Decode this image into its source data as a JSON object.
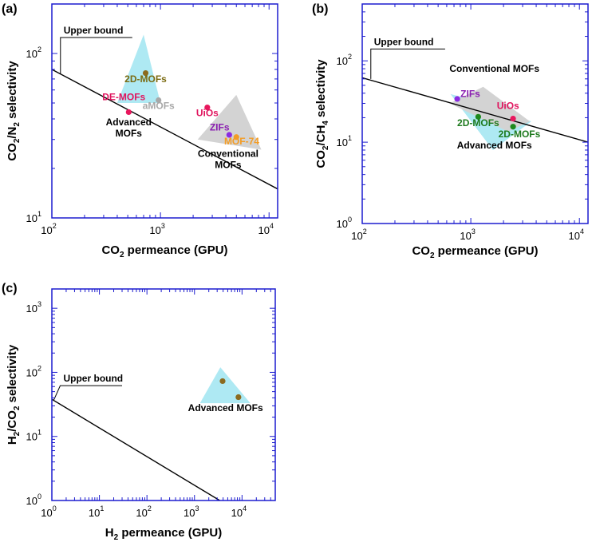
{
  "chart_data": [
    {
      "panel": "(a)",
      "type": "scatter",
      "xscale": "log",
      "yscale": "log",
      "xlim": [
        100,
        12000
      ],
      "ylim": [
        10,
        200
      ],
      "xlabel": "CO2 permeance (GPU)",
      "ylabel": "CO2/N2 selectivity",
      "xlabel_parts": [
        "CO",
        "2",
        " permeance (GPU)"
      ],
      "ylabel_parts": [
        "CO",
        "2",
        "/N",
        "2",
        " selectivity"
      ],
      "xticks": [
        {
          "value": 100,
          "base": "10",
          "exp": "2"
        },
        {
          "value": 1000,
          "base": "10",
          "exp": "3"
        },
        {
          "value": 10000,
          "base": "10",
          "exp": "4"
        }
      ],
      "yticks": [
        {
          "value": 10,
          "base": "10",
          "exp": "1"
        },
        {
          "value": 100,
          "base": "10",
          "exp": "2"
        }
      ],
      "upper_bound": {
        "label": "Upper bound",
        "p1": [
          100,
          80
        ],
        "p2": [
          12000,
          15
        ]
      },
      "upper_bound_leader": {
        "anchor": [
          120,
          75
        ],
        "label_at": [
          120,
          125
        ],
        "end": [
          550,
          125
        ]
      },
      "regions": [
        {
          "name": "advanced",
          "color": "#aee9f3",
          "label_lines": [
            "Advanced",
            "MOFs"
          ],
          "label_at": [
            510,
            36.5
          ],
          "polygon": [
            [
              700,
              130
            ],
            [
              1000,
              50
            ],
            [
              400,
              50
            ]
          ]
        },
        {
          "name": "conventional",
          "color": "#d3d3d3",
          "label_lines": [
            "Conventional",
            "MOFs"
          ],
          "label_at": [
            4200,
            23.5
          ],
          "polygon": [
            [
              5000,
              56
            ],
            [
              8500,
              26
            ],
            [
              2200,
              30
            ]
          ]
        }
      ],
      "points": [
        {
          "label": "2D-MOFs",
          "x": 730,
          "y": 76,
          "color": "#8b6a1e",
          "text_color": "#7a6a10",
          "label_at": [
            730,
            67
          ]
        },
        {
          "label": "aMOFs",
          "x": 960,
          "y": 52,
          "color": "#a8a8a8",
          "text_color": "#a8a8a8",
          "label_at": [
            960,
            46
          ]
        },
        {
          "label": "DE-MOFs",
          "x": 510,
          "y": 44,
          "color": "#e8175d",
          "text_color": "#e0135d",
          "label_at": [
            460,
            52
          ]
        },
        {
          "label": "UiOs",
          "x": 2700,
          "y": 47,
          "color": "#e8175d",
          "text_color": "#e0135d",
          "label_at": [
            2700,
            41.5
          ]
        },
        {
          "label": "ZIFs",
          "x": 4300,
          "y": 32,
          "color": "#8a2be2",
          "text_color": "#8a1fb0",
          "label_at": [
            3500,
            34
          ]
        },
        {
          "label": "MOF-74",
          "x": 5000,
          "y": 31,
          "color": "#f39c24",
          "text_color": "#f39c24",
          "label_at": [
            5600,
            28
          ]
        }
      ]
    },
    {
      "panel": "(b)",
      "type": "scatter",
      "xscale": "log",
      "yscale": "log",
      "xlim": [
        100,
        12000
      ],
      "ylim": [
        1,
        500
      ],
      "xlabel": "CO2 permeance (GPU)",
      "ylabel": "CO2/CH4 selectivity",
      "xlabel_parts": [
        "CO",
        "2",
        " permeance (GPU)"
      ],
      "ylabel_parts": [
        "CO",
        "2",
        "/CH",
        "4",
        " selectivity"
      ],
      "xticks": [
        {
          "value": 100,
          "base": "10",
          "exp": "2"
        },
        {
          "value": 1000,
          "base": "10",
          "exp": "3"
        },
        {
          "value": 10000,
          "base": "10",
          "exp": "4"
        }
      ],
      "yticks": [
        {
          "value": 1,
          "base": "10",
          "exp": "0"
        },
        {
          "value": 10,
          "base": "10",
          "exp": "1"
        },
        {
          "value": 100,
          "base": "10",
          "exp": "2"
        }
      ],
      "upper_bound": {
        "label": "Upper bound",
        "p1": [
          100,
          62
        ],
        "p2": [
          12000,
          10
        ]
      },
      "upper_bound_leader": {
        "anchor": [
          120,
          60
        ],
        "label_at": [
          120,
          140
        ],
        "end": [
          580,
          140
        ]
      },
      "regions": [
        {
          "name": "advanced",
          "color": "#aee9f3",
          "label_lines": [
            "Advanced MOFs"
          ],
          "label_at": [
            1650,
            8.4
          ],
          "polygon": [
            [
              650,
              39
            ],
            [
              1400,
              30
            ],
            [
              3600,
              18
            ],
            [
              1600,
              8
            ]
          ]
        },
        {
          "name": "conventional",
          "color": "#d3d3d3",
          "label_lines": [
            "Conventional MOFs"
          ],
          "label_at": [
            1650,
            73
          ],
          "polygon": [
            [
              1300,
              48
            ],
            [
              3500,
              18
            ],
            [
              2200,
              13.5
            ],
            [
              640,
              30
            ]
          ]
        }
      ],
      "points": [
        {
          "label": "ZIFs",
          "x": 750,
          "y": 34,
          "color": "#8a2be2",
          "text_color": "#8a1fb0",
          "label_at": [
            990,
            36
          ]
        },
        {
          "label": "UiOs",
          "x": 2450,
          "y": 19.5,
          "color": "#e8175d",
          "text_color": "#e0135d",
          "label_at": [
            2200,
            25.5
          ]
        },
        {
          "label": "2D-MOFs",
          "x": 1170,
          "y": 20.5,
          "color": "#1e8a1e",
          "text_color": "#1e7a1e",
          "label_at": [
            1170,
            15.8
          ]
        },
        {
          "label": "2D-MOFs",
          "x": 2450,
          "y": 15.5,
          "color": "#1e8a1e",
          "text_color": "#1e7a1e",
          "label_at": [
            2800,
            11.5
          ]
        }
      ]
    },
    {
      "panel": "(c)",
      "type": "scatter",
      "xscale": "log",
      "yscale": "log",
      "xlim": [
        1,
        50000
      ],
      "ylim": [
        1,
        2000
      ],
      "xlabel": "H2 permeance (GPU)",
      "ylabel": "H2/CO2 selectivity",
      "xlabel_parts": [
        "H",
        "2",
        " permeance (GPU)"
      ],
      "ylabel_parts": [
        "H",
        "2",
        "/CO",
        "2",
        " selectivity"
      ],
      "xticks": [
        {
          "value": 1,
          "base": "10",
          "exp": "0"
        },
        {
          "value": 10,
          "base": "10",
          "exp": "1"
        },
        {
          "value": 100,
          "base": "10",
          "exp": "2"
        },
        {
          "value": 1000,
          "base": "10",
          "exp": "3"
        },
        {
          "value": 10000,
          "base": "10",
          "exp": "4"
        }
      ],
      "yticks": [
        {
          "value": 1,
          "base": "10",
          "exp": "0"
        },
        {
          "value": 10,
          "base": "10",
          "exp": "1"
        },
        {
          "value": 100,
          "base": "10",
          "exp": "2"
        },
        {
          "value": 1000,
          "base": "10",
          "exp": "3"
        }
      ],
      "upper_bound": {
        "label": "Upper bound",
        "p1": [
          1,
          38
        ],
        "p2": [
          3400,
          1
        ]
      },
      "upper_bound_leader": {
        "anchor": [
          1.1,
          37
        ],
        "label_at": [
          1.5,
          62
        ],
        "end": [
          30,
          62
        ]
      },
      "regions": [
        {
          "name": "advanced",
          "color": "#aee9f3",
          "label_lines": [
            "Advanced MOFs"
          ],
          "label_at": [
            4500,
            25
          ],
          "polygon": [
            [
              3500,
              120
            ],
            [
              15000,
              33
            ],
            [
              1300,
              33
            ]
          ]
        }
      ],
      "points": [
        {
          "label": "",
          "x": 3900,
          "y": 73,
          "color": "#8b6a1e",
          "text_color": "#8b6a1e"
        },
        {
          "label": "",
          "x": 8400,
          "y": 41,
          "color": "#8b6a1e",
          "text_color": "#8b6a1e"
        }
      ]
    }
  ]
}
